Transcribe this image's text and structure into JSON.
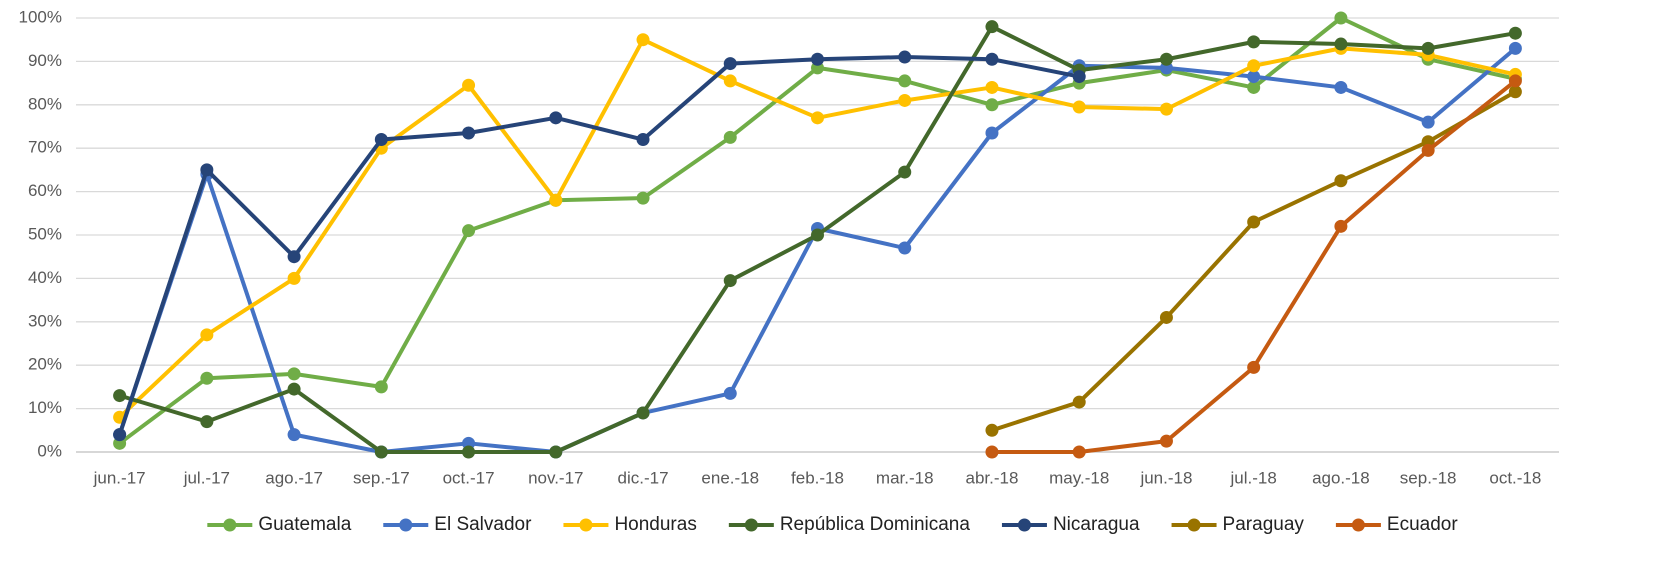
{
  "chart_data": {
    "type": "line",
    "categories": [
      "jun.-17",
      "jul.-17",
      "ago.-17",
      "sep.-17",
      "oct.-17",
      "nov.-17",
      "dic.-17",
      "ene.-18",
      "feb.-18",
      "mar.-18",
      "abr.-18",
      "may.-18",
      "jun.-18",
      "jul.-18",
      "ago.-18",
      "sep.-18",
      "oct.-18"
    ],
    "series": [
      {
        "name": "Guatemala",
        "color": "#70ad47",
        "values": [
          2,
          17,
          18,
          15,
          51,
          58,
          58.5,
          72.5,
          88.5,
          85.5,
          80,
          85,
          88,
          84,
          100,
          90.5,
          86
        ]
      },
      {
        "name": "El Salvador",
        "color": "#4472c4",
        "values": [
          4,
          64,
          4,
          0,
          2,
          0,
          9,
          13.5,
          51.5,
          47,
          73.5,
          89,
          88.5,
          86.5,
          84,
          76,
          93
        ]
      },
      {
        "name": "Honduras",
        "color": "#ffc000",
        "values": [
          8,
          27,
          40,
          70,
          84.5,
          58,
          95,
          85.5,
          77,
          81,
          84,
          79.5,
          79,
          89,
          93,
          91.5,
          87
        ]
      },
      {
        "name": "República Dominicana",
        "color": "#43682b",
        "values": [
          13,
          7,
          14.5,
          0,
          0,
          0,
          9,
          39.5,
          50,
          64.5,
          98,
          88,
          90.5,
          94.5,
          94,
          93,
          96.5
        ]
      },
      {
        "name": "Nicaragua",
        "color": "#264478",
        "values": [
          4,
          65,
          45,
          72,
          73.5,
          77,
          72,
          89.5,
          90.5,
          91,
          90.5,
          86.5,
          null,
          null,
          null,
          null,
          null
        ]
      },
      {
        "name": "Paraguay",
        "color": "#997300",
        "values": [
          null,
          null,
          null,
          null,
          null,
          null,
          null,
          null,
          null,
          null,
          5,
          11.5,
          31,
          53,
          62.5,
          71.5,
          83
        ]
      },
      {
        "name": "Ecuador",
        "color": "#c55a11",
        "values": [
          null,
          null,
          null,
          null,
          null,
          null,
          null,
          null,
          null,
          null,
          0,
          0,
          2.5,
          19.5,
          52,
          69.5,
          85.5
        ]
      }
    ],
    "ylim": [
      0,
      100
    ],
    "yticks": [
      {
        "value": 0,
        "label": "0%"
      },
      {
        "value": 10,
        "label": "10%"
      },
      {
        "value": 20,
        "label": "20%"
      },
      {
        "value": 30,
        "label": "30%"
      },
      {
        "value": 40,
        "label": "40%"
      },
      {
        "value": 50,
        "label": "50%"
      },
      {
        "value": 60,
        "label": "60%"
      },
      {
        "value": 70,
        "label": "70%"
      },
      {
        "value": 80,
        "label": "80%"
      },
      {
        "value": 90,
        "label": "90%"
      },
      {
        "value": 100,
        "label": "100%"
      }
    ],
    "grid": true,
    "legend": "bottom"
  }
}
